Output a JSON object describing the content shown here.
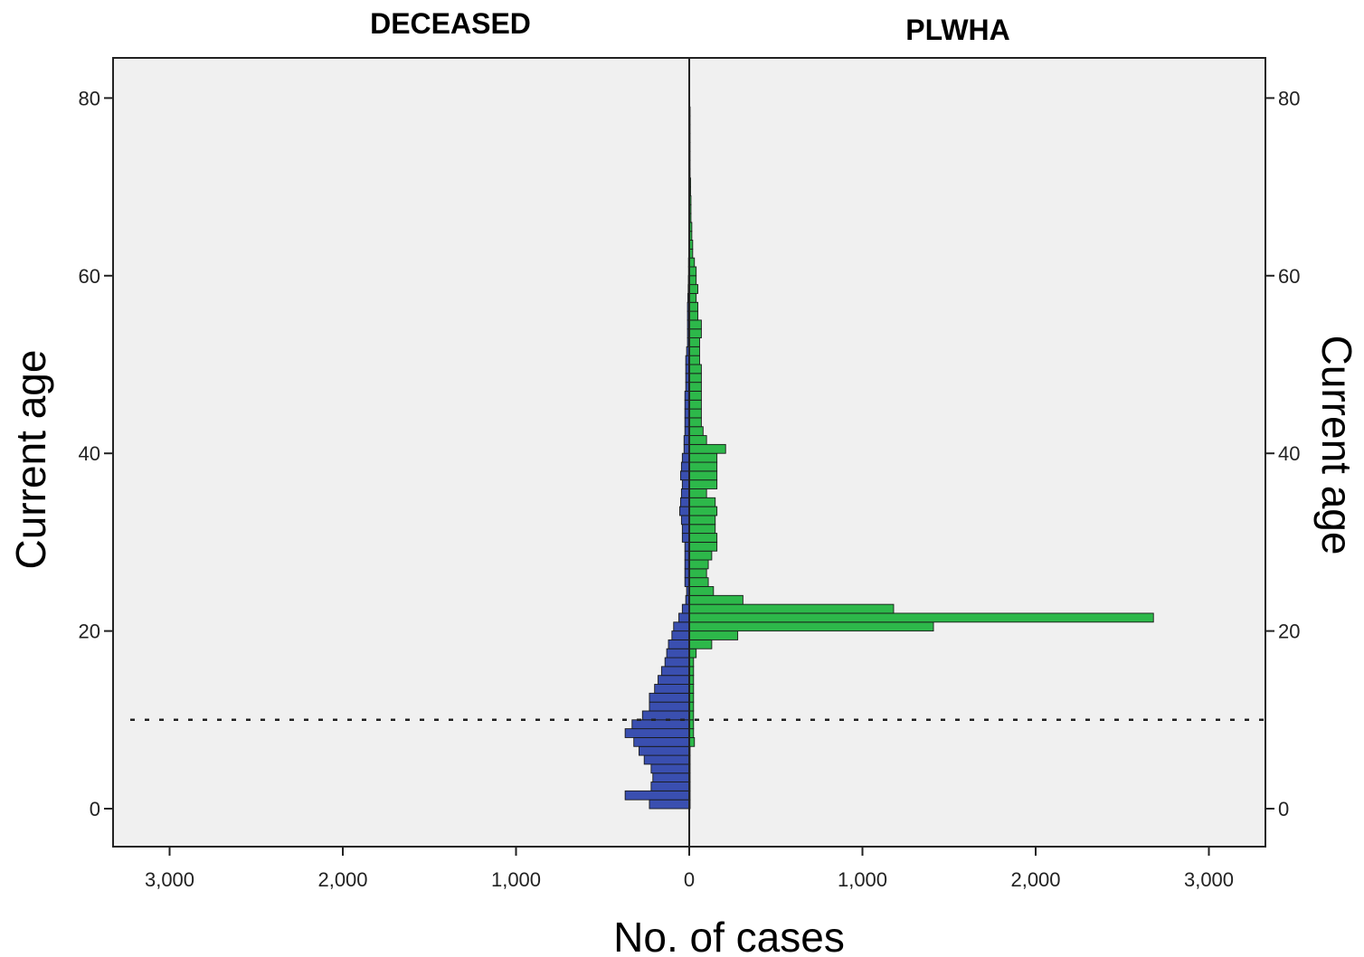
{
  "chart_data": {
    "type": "bar",
    "orientation": "horizontal",
    "layout": "back-to-back population pyramid",
    "panels": {
      "left": "DECEASED",
      "right": "PLWHA"
    },
    "xlabel": "No. of cases",
    "ylabel": "Current age",
    "ylabel_right": "Current age",
    "xlim": [
      -3350,
      3350
    ],
    "ylim": [
      -4.3,
      84.5
    ],
    "x_ticks": [
      "3,000",
      "2,000",
      "1,000",
      "0",
      "1,000",
      "2,000",
      "3,000"
    ],
    "x_tick_values": [
      -3000,
      -2000,
      -1000,
      0,
      1000,
      2000,
      3000
    ],
    "y_ticks": [
      "0",
      "20",
      "40",
      "60",
      "80"
    ],
    "y_tick_values": [
      0,
      20,
      40,
      60,
      80
    ],
    "reference_line": {
      "axis": "y",
      "value": 10,
      "style": "dotted"
    },
    "grid": false,
    "series": [
      {
        "color": "#3a4fb0",
        "side": "left",
        "ages": [
          0,
          1,
          2,
          3,
          4,
          5,
          6,
          7,
          8,
          9,
          10,
          11,
          12,
          13,
          14,
          15,
          16,
          17,
          18,
          19,
          20,
          21,
          22,
          23,
          24,
          25,
          26,
          27,
          28,
          29,
          30,
          31,
          32,
          33,
          34,
          35,
          36,
          37,
          38,
          39,
          40,
          41,
          42,
          43,
          44,
          45,
          46,
          47,
          48,
          49,
          50,
          51,
          52,
          53,
          54,
          55,
          56,
          57,
          58,
          59,
          60,
          61,
          62,
          63,
          64,
          65,
          66,
          67,
          68,
          69,
          70,
          71,
          72,
          73,
          74,
          75,
          76,
          77,
          78,
          79
        ],
        "values": [
          230,
          370,
          220,
          210,
          220,
          260,
          290,
          320,
          370,
          330,
          270,
          230,
          230,
          200,
          180,
          160,
          140,
          130,
          120,
          100,
          90,
          60,
          40,
          20,
          15,
          25,
          25,
          25,
          25,
          25,
          40,
          40,
          45,
          55,
          50,
          45,
          40,
          50,
          45,
          40,
          30,
          30,
          25,
          25,
          25,
          25,
          25,
          20,
          20,
          20,
          20,
          15,
          10,
          10,
          10,
          10,
          10,
          8,
          6,
          5,
          4,
          4,
          3,
          3,
          2,
          2,
          2,
          2,
          2,
          1,
          1,
          1,
          1,
          1,
          1,
          1,
          1,
          1,
          1,
          0
        ]
      },
      {
        "color": "#2db84a",
        "side": "right",
        "ages": [
          0,
          1,
          2,
          3,
          4,
          5,
          6,
          7,
          8,
          9,
          10,
          11,
          12,
          13,
          14,
          15,
          16,
          17,
          18,
          19,
          20,
          21,
          22,
          23,
          24,
          25,
          26,
          27,
          28,
          29,
          30,
          31,
          32,
          33,
          34,
          35,
          36,
          37,
          38,
          39,
          40,
          41,
          42,
          43,
          44,
          45,
          46,
          47,
          48,
          49,
          50,
          51,
          52,
          53,
          54,
          55,
          56,
          57,
          58,
          59,
          60,
          61,
          62,
          63,
          64,
          65,
          66,
          67,
          68,
          69,
          70,
          71,
          72,
          73,
          74,
          75,
          76,
          77,
          78,
          79
        ],
        "values": [
          5,
          5,
          5,
          5,
          5,
          5,
          5,
          30,
          25,
          25,
          25,
          25,
          25,
          25,
          25,
          25,
          25,
          40,
          130,
          280,
          1410,
          2680,
          1180,
          310,
          140,
          110,
          100,
          110,
          130,
          160,
          160,
          150,
          150,
          160,
          150,
          100,
          160,
          160,
          160,
          160,
          210,
          100,
          80,
          70,
          70,
          70,
          70,
          70,
          70,
          70,
          60,
          60,
          60,
          70,
          70,
          50,
          50,
          40,
          50,
          40,
          40,
          30,
          20,
          20,
          15,
          15,
          10,
          10,
          10,
          8,
          8,
          5,
          5,
          5,
          5,
          5,
          5,
          5,
          5,
          3
        ]
      }
    ]
  }
}
